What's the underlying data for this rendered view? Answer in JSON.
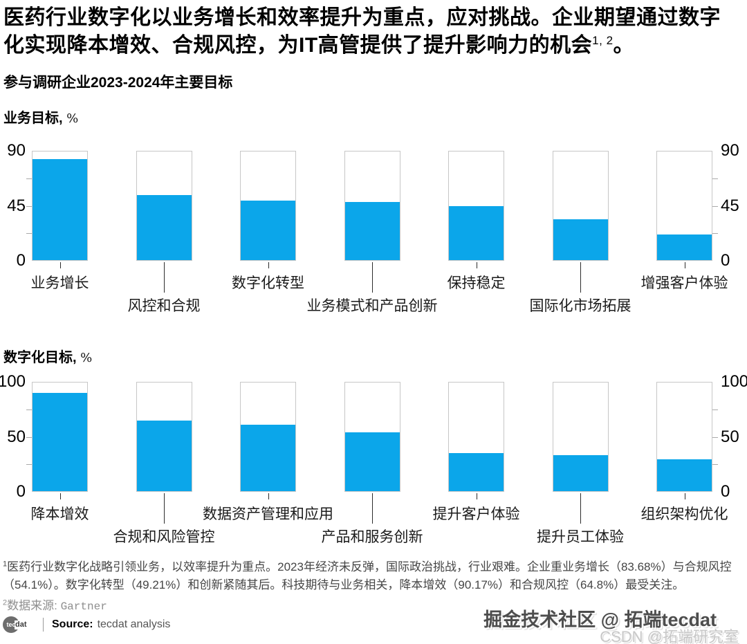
{
  "page": {
    "title_text": "医药行业数字化以业务增长和效率提升为重点，应对挑战。企业期望通过数字化实现降本增效、合规风控，为IT高管提供了提升影响力的机会",
    "title_sup": "1, 2",
    "title_end": "。",
    "subtitle": "参与调研企业2023-2024年主要目标"
  },
  "chart_data": [
    {
      "type": "bar",
      "title": "业务目标,",
      "unit": "%",
      "categories": [
        "业务增长",
        "风控和合规",
        "数字化转型",
        "业务模式和产品创新",
        "保持稳定",
        "国际化市场拓展",
        "增强客户体验"
      ],
      "values": [
        83.68,
        54.1,
        49.21,
        48,
        45,
        34,
        21
      ],
      "ylim": [
        0,
        90
      ],
      "yticks": [
        90,
        45,
        0
      ],
      "grid": false,
      "legend": "none",
      "bar_color": "#0ba6ea",
      "frame_color": "#c6c6c6"
    },
    {
      "type": "bar",
      "title": "数字化目标,",
      "unit": "%",
      "categories": [
        "降本增效",
        "合规和风险管控",
        "数据资产管理和应用",
        "产品和服务创新",
        "提升客户体验",
        "提升员工体验",
        "组织架构优化"
      ],
      "values": [
        90.17,
        64.8,
        61,
        54,
        35,
        33,
        29
      ],
      "ylim": [
        0,
        100
      ],
      "yticks": [
        100,
        50,
        0
      ],
      "grid": false,
      "legend": "none",
      "bar_color": "#0ba6ea",
      "frame_color": "#c6c6c6"
    }
  ],
  "footnotes": {
    "note1_sup": "1",
    "note1": "医药行业数字化战略引领业务，以效率提升为重点。2023年经济未反弹，国际政治挑战，行业艰难。企业重业务增长（83.68%）与合规风控（54.1%）。数字化转型（49.21%）和创新紧随其后。科技期待与业务相关，降本增效（90.17%）和合规风控（64.8%）最受关注。",
    "note2_sup": "2",
    "note2_label": "数据来源: ",
    "note2_value": "Gartner"
  },
  "source": {
    "logo_circle_text": "tec",
    "logo_suffix": "dat",
    "label": "Source:",
    "value": "tecdat analysis"
  },
  "watermarks": {
    "line1": "掘金技术社区 @ 拓端tecdat",
    "line2": "CSDN @拓端研究室"
  }
}
